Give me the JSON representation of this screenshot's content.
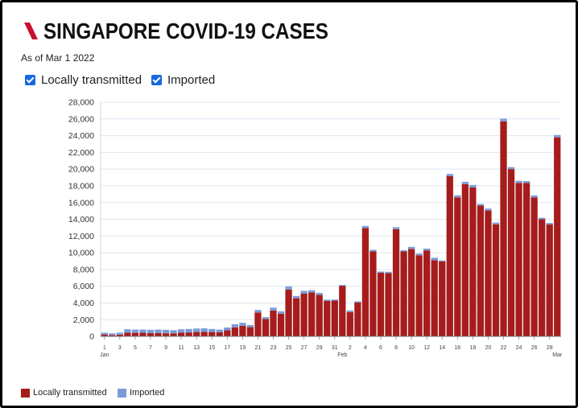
{
  "header": {
    "logo_icon": "red-slash-logo-icon"
  },
  "filters": [
    {
      "label": "Locally transmitted",
      "checked": true
    },
    {
      "label": "Imported",
      "checked": true
    }
  ],
  "colors": {
    "brand": "#c8102e",
    "checkbox": "#1769e0",
    "grid": "#dde6f1",
    "axis": "#777777"
  },
  "chart_data": {
    "type": "bar",
    "stacked": true,
    "title": "SINGAPORE COVID-19 CASES",
    "subtitle": "As of Mar 1 2022",
    "x": [
      "2022-01-01",
      "2022-01-02",
      "2022-01-03",
      "2022-01-04",
      "2022-01-05",
      "2022-01-06",
      "2022-01-07",
      "2022-01-08",
      "2022-01-09",
      "2022-01-10",
      "2022-01-11",
      "2022-01-12",
      "2022-01-13",
      "2022-01-14",
      "2022-01-15",
      "2022-01-16",
      "2022-01-17",
      "2022-01-18",
      "2022-01-19",
      "2022-01-20",
      "2022-01-21",
      "2022-01-22",
      "2022-01-23",
      "2022-01-24",
      "2022-01-25",
      "2022-01-26",
      "2022-01-27",
      "2022-01-28",
      "2022-01-29",
      "2022-01-30",
      "2022-01-31",
      "2022-02-01",
      "2022-02-02",
      "2022-02-03",
      "2022-02-04",
      "2022-02-05",
      "2022-02-06",
      "2022-02-07",
      "2022-02-08",
      "2022-02-09",
      "2022-02-10",
      "2022-02-11",
      "2022-02-12",
      "2022-02-13",
      "2022-02-14",
      "2022-02-15",
      "2022-02-16",
      "2022-02-17",
      "2022-02-18",
      "2022-02-19",
      "2022-02-20",
      "2022-02-21",
      "2022-02-22",
      "2022-02-23",
      "2022-02-24",
      "2022-02-25",
      "2022-02-26",
      "2022-02-27",
      "2022-02-28",
      "2022-03-01"
    ],
    "x_ticks": [
      "1",
      "3",
      "5",
      "7",
      "9",
      "11",
      "13",
      "15",
      "17",
      "19",
      "21",
      "23",
      "25",
      "27",
      "29",
      "31",
      "2",
      "4",
      "6",
      "8",
      "10",
      "12",
      "14",
      "16",
      "18",
      "20",
      "22",
      "24",
      "26",
      "28"
    ],
    "months": [
      {
        "label": "Jan",
        "date": "2022-01-01"
      },
      {
        "label": "Feb",
        "date": "2022-02-01"
      },
      {
        "label": "Mar",
        "date": "2022-03-01"
      }
    ],
    "y_ticks": [
      "0",
      "2,000",
      "4,000",
      "6,000",
      "8,000",
      "10,000",
      "12,000",
      "14,000",
      "16,000",
      "18,000",
      "20,000",
      "22,000",
      "24,000",
      "26,000",
      "28,000"
    ],
    "ylim": [
      0,
      28000
    ],
    "grid": true,
    "legend": "bottom-left",
    "series": [
      {
        "name": "Locally transmitted",
        "color": "#a61c1c",
        "values": [
          230,
          160,
          200,
          450,
          420,
          430,
          380,
          400,
          370,
          350,
          450,
          470,
          520,
          540,
          520,
          480,
          720,
          1080,
          1270,
          1100,
          2860,
          2080,
          3100,
          2700,
          5600,
          4560,
          5100,
          5250,
          4950,
          4240,
          4280,
          6050,
          2900,
          4050,
          12950,
          10150,
          7600,
          7550,
          12800,
          10150,
          10450,
          9700,
          10280,
          9100,
          8950,
          19150,
          16600,
          18200,
          17800,
          15650,
          15050,
          13400,
          25700,
          20000,
          18350,
          18350,
          16600,
          14000,
          13400,
          23800
        ]
      },
      {
        "name": "Imported",
        "color": "#7c9cd8",
        "values": [
          210,
          200,
          250,
          400,
          390,
          390,
          400,
          410,
          420,
          390,
          390,
          420,
          420,
          420,
          370,
          330,
          340,
          370,
          360,
          260,
          300,
          220,
          330,
          300,
          370,
          270,
          350,
          270,
          250,
          160,
          120,
          100,
          200,
          150,
          250,
          200,
          150,
          170,
          250,
          150,
          250,
          200,
          220,
          300,
          130,
          270,
          270,
          280,
          300,
          180,
          230,
          210,
          330,
          240,
          250,
          220,
          260,
          180,
          160,
          280
        ]
      }
    ]
  }
}
